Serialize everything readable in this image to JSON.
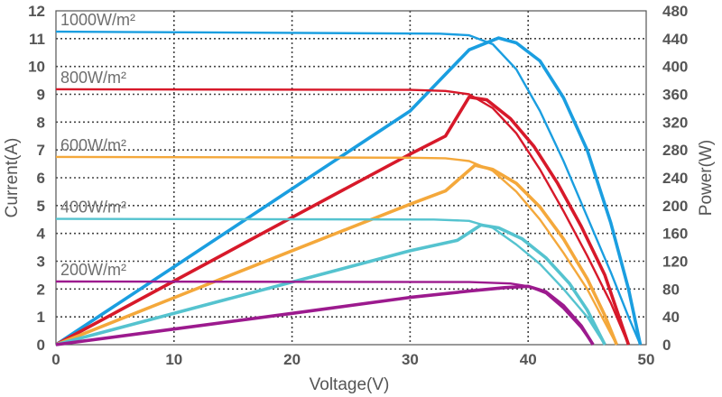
{
  "chart_data": {
    "type": "line",
    "xlabel": "Voltage(V)",
    "ylabel_left": "Current(A)",
    "ylabel_right": "Power(W)",
    "xlim": [
      0,
      50
    ],
    "ylim_left": [
      0,
      12
    ],
    "ylim_right": [
      0,
      480
    ],
    "x_ticks": [
      "0",
      "10",
      "20",
      "30",
      "40",
      "50"
    ],
    "y_left_ticks": [
      "0",
      "1",
      "2",
      "3",
      "4",
      "5",
      "6",
      "7",
      "8",
      "9",
      "10",
      "11",
      "12"
    ],
    "y_right_ticks": [
      "0",
      "40",
      "80",
      "120",
      "160",
      "200",
      "240",
      "280",
      "320",
      "360",
      "400",
      "440",
      "480"
    ],
    "grid": true,
    "legend": "labels above curves",
    "series": [
      {
        "name": "1000W/m²",
        "color": "#1a9ee0",
        "current": [
          [
            0,
            11.25
          ],
          [
            32.5,
            11.18
          ],
          [
            35,
            11.12
          ],
          [
            37,
            10.8
          ],
          [
            39,
            9.9
          ],
          [
            41,
            8.4
          ],
          [
            43,
            6.6
          ],
          [
            45,
            4.6
          ],
          [
            47,
            2.6
          ],
          [
            48.5,
            1.0
          ],
          [
            49.5,
            0
          ]
        ],
        "power": [
          [
            0,
            0
          ],
          [
            10,
            112
          ],
          [
            20,
            224
          ],
          [
            30,
            336
          ],
          [
            35,
            424
          ],
          [
            37.5,
            441
          ],
          [
            39,
            434
          ],
          [
            41,
            408
          ],
          [
            43,
            355
          ],
          [
            45,
            280
          ],
          [
            47,
            175
          ],
          [
            48.5,
            80
          ],
          [
            49.5,
            0
          ]
        ]
      },
      {
        "name": "800W/m²",
        "color": "#d7192a",
        "current": [
          [
            0,
            9.18
          ],
          [
            30,
            9.16
          ],
          [
            33,
            9.12
          ],
          [
            35,
            9.0
          ],
          [
            37,
            8.5
          ],
          [
            39,
            7.6
          ],
          [
            41,
            6.3
          ],
          [
            43,
            4.8
          ],
          [
            45,
            3.2
          ],
          [
            47,
            1.5
          ],
          [
            48.5,
            0
          ]
        ],
        "power": [
          [
            0,
            0
          ],
          [
            10,
            91.5
          ],
          [
            20,
            183
          ],
          [
            30,
            274
          ],
          [
            33,
            300
          ],
          [
            35,
            356
          ],
          [
            36.5,
            352
          ],
          [
            38.5,
            325
          ],
          [
            40.5,
            285
          ],
          [
            42.5,
            232
          ],
          [
            44.5,
            170
          ],
          [
            46.5,
            100
          ],
          [
            48.5,
            0
          ]
        ]
      },
      {
        "name": "600W/m²",
        "color": "#f4a83b",
        "current": [
          [
            0,
            6.75
          ],
          [
            30,
            6.72
          ],
          [
            33,
            6.7
          ],
          [
            35,
            6.6
          ],
          [
            37,
            6.25
          ],
          [
            39,
            5.5
          ],
          [
            41,
            4.5
          ],
          [
            43,
            3.3
          ],
          [
            45,
            2.0
          ],
          [
            46.5,
            0.8
          ],
          [
            47.5,
            0
          ]
        ],
        "power": [
          [
            0,
            0
          ],
          [
            10,
            67.5
          ],
          [
            20,
            135
          ],
          [
            30,
            202
          ],
          [
            33,
            221
          ],
          [
            35.5,
            258
          ],
          [
            37,
            252
          ],
          [
            39,
            232
          ],
          [
            41,
            198
          ],
          [
            43,
            152
          ],
          [
            45,
            95
          ],
          [
            46.5,
            42
          ],
          [
            47.5,
            0
          ]
        ]
      },
      {
        "name": "400W/m²",
        "color": "#55c3cf",
        "current": [
          [
            0,
            4.52
          ],
          [
            32,
            4.5
          ],
          [
            35,
            4.45
          ],
          [
            37,
            4.2
          ],
          [
            39,
            3.6
          ],
          [
            41,
            2.9
          ],
          [
            43,
            2.0
          ],
          [
            45,
            1.0
          ],
          [
            46.5,
            0
          ]
        ],
        "power": [
          [
            0,
            0
          ],
          [
            10,
            45
          ],
          [
            20,
            90
          ],
          [
            30,
            135
          ],
          [
            34,
            150
          ],
          [
            36,
            172
          ],
          [
            37.5,
            168
          ],
          [
            39.5,
            152
          ],
          [
            41.5,
            125
          ],
          [
            43.5,
            88
          ],
          [
            45,
            50
          ],
          [
            46.5,
            0
          ]
        ]
      },
      {
        "name": "200W/m²",
        "color": "#9c1a8e",
        "current": [
          [
            0,
            2.27
          ],
          [
            35,
            2.25
          ],
          [
            38.5,
            2.2
          ],
          [
            40,
            2.1
          ],
          [
            41.5,
            1.85
          ],
          [
            43,
            1.3
          ],
          [
            44.5,
            0.6
          ],
          [
            45.5,
            0
          ]
        ],
        "power": [
          [
            0,
            0
          ],
          [
            10,
            22.5
          ],
          [
            20,
            45
          ],
          [
            30,
            68
          ],
          [
            35,
            77
          ],
          [
            38,
            82
          ],
          [
            40,
            84
          ],
          [
            41.5,
            76
          ],
          [
            43,
            56
          ],
          [
            44.5,
            27
          ],
          [
            45.5,
            0
          ]
        ]
      }
    ]
  }
}
